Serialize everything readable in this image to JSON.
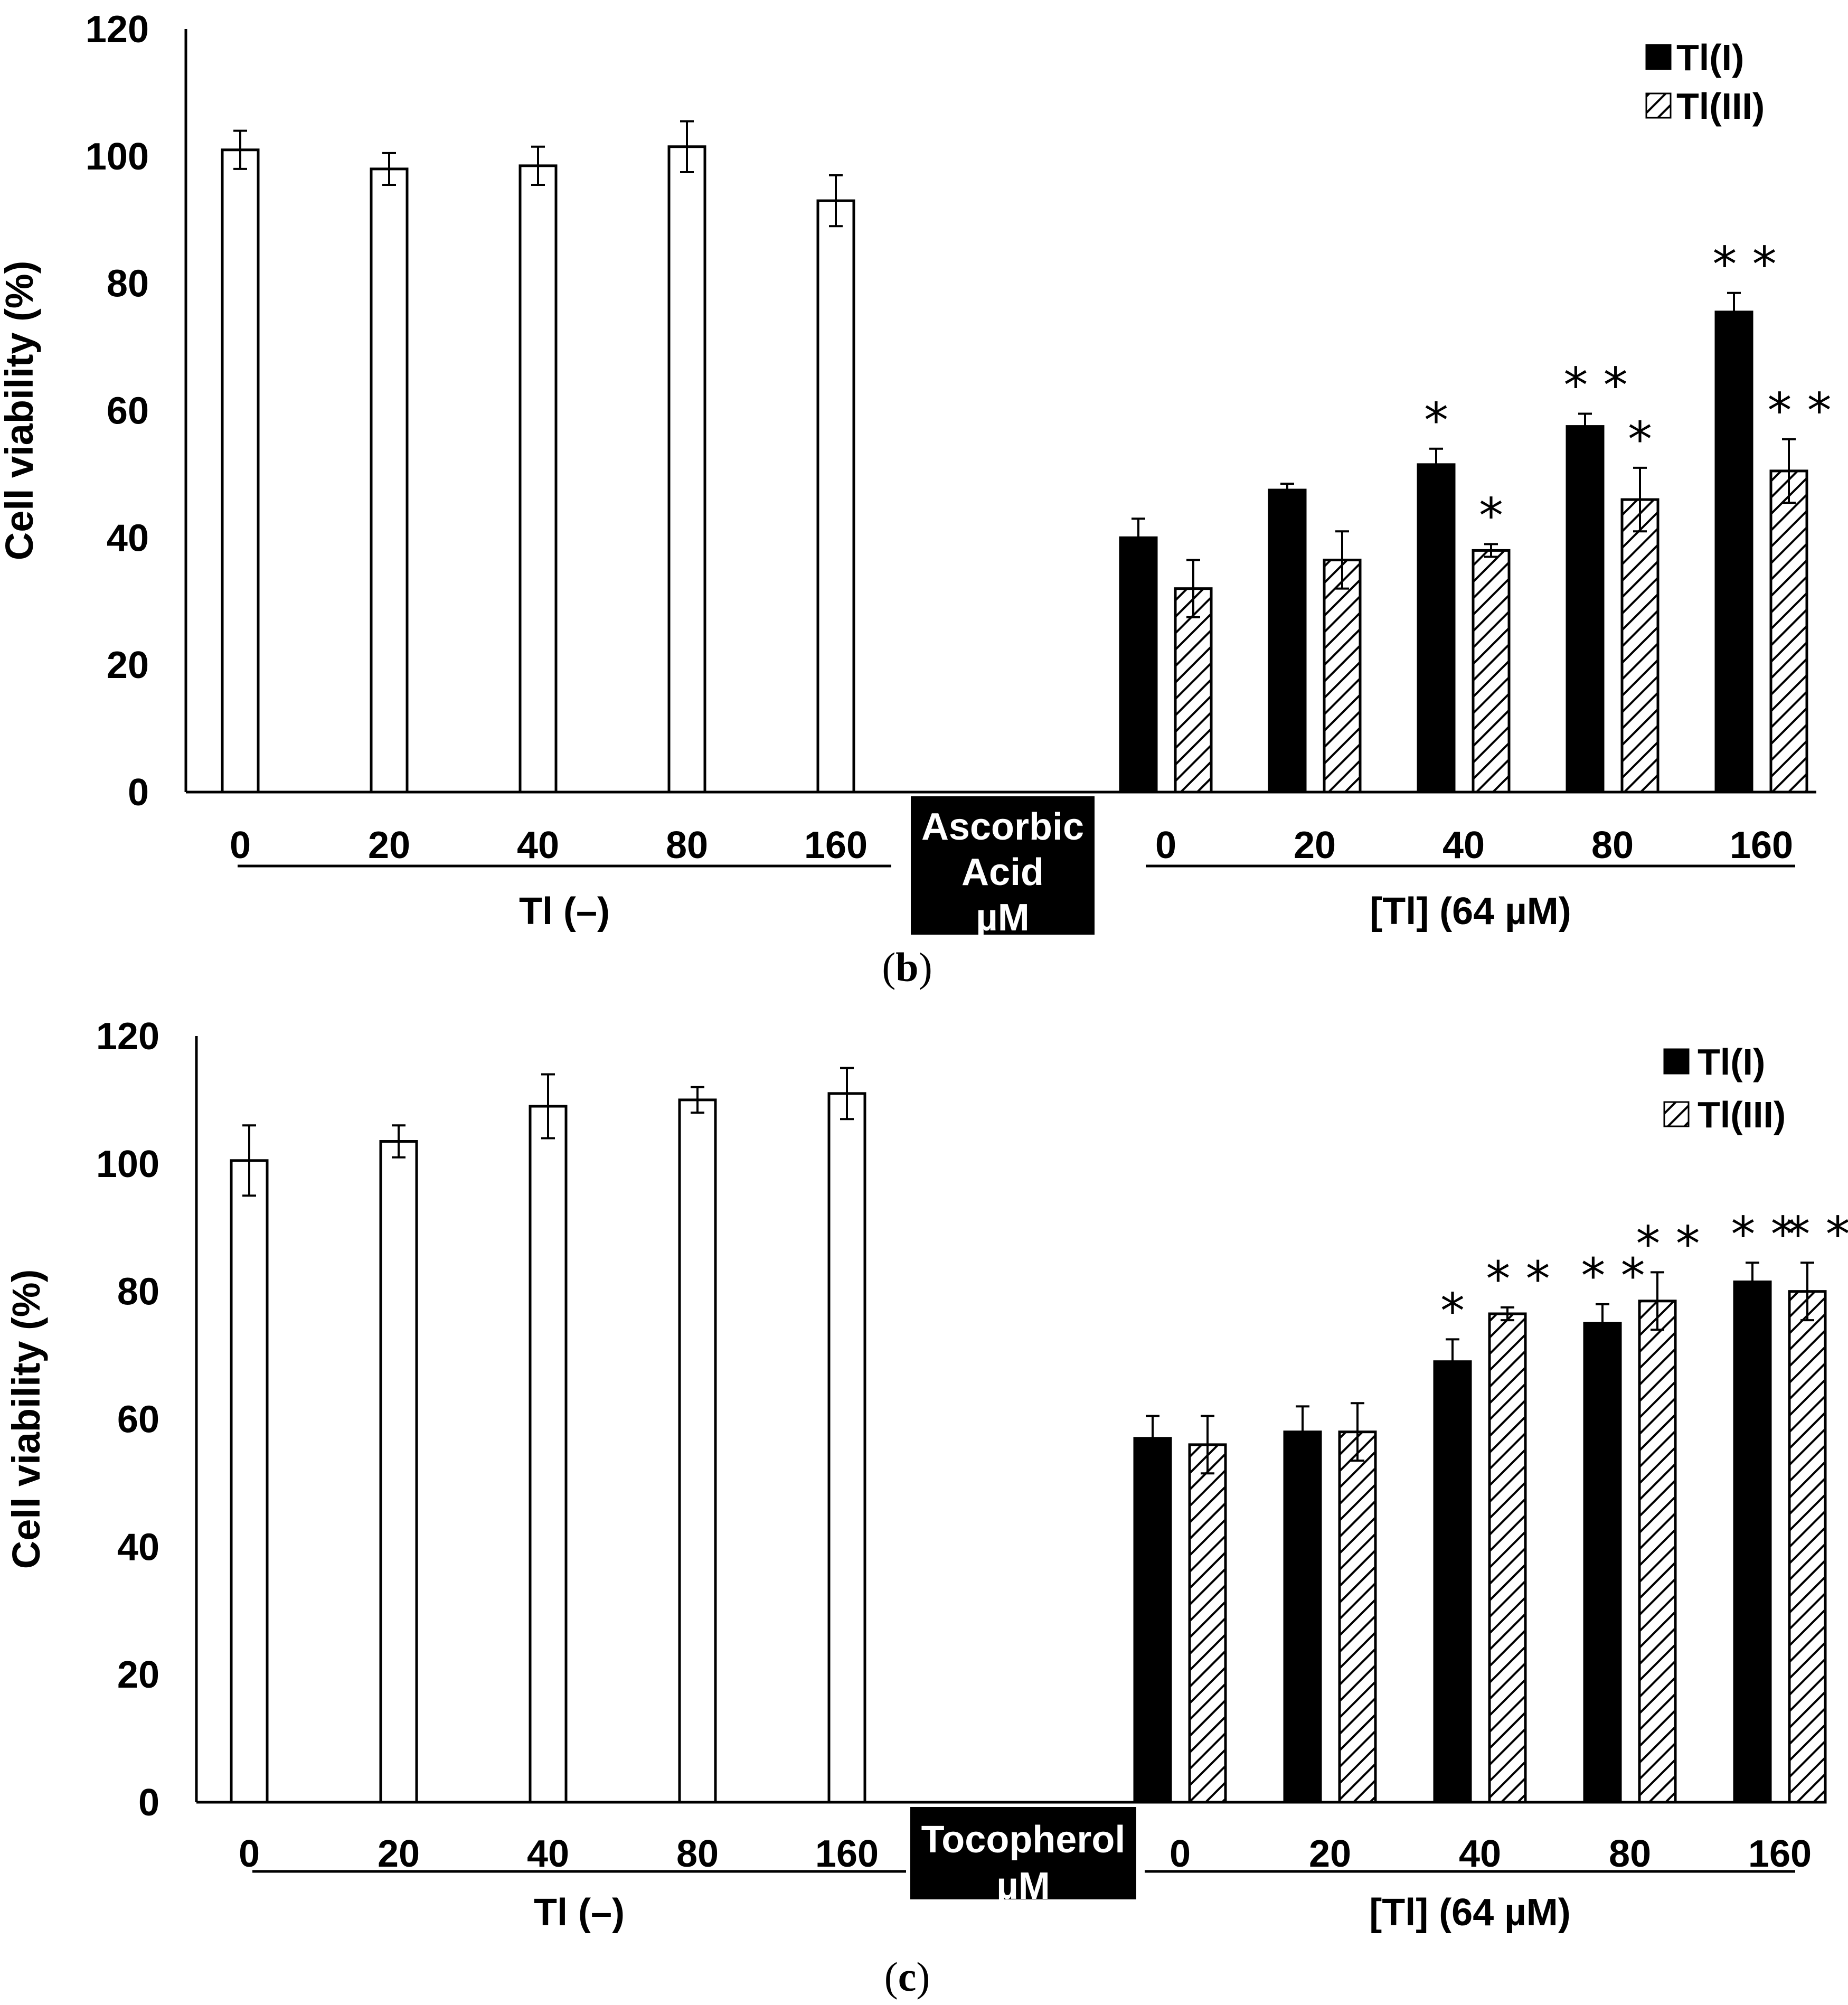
{
  "chart_data": [
    {
      "type": "bar",
      "panel": "b",
      "ylabel": "Cell viability (%)",
      "ylim": [
        0,
        120
      ],
      "yticks": [
        0,
        20,
        40,
        60,
        80,
        100,
        120
      ],
      "categories": [
        "0",
        "20",
        "40",
        "80",
        "160"
      ],
      "additive_label": [
        "Ascorbic",
        "Acid",
        "µM"
      ],
      "group_control_label": "Tl (–)",
      "group_treated_label": "[Tl] (64 µM)",
      "legend": [
        "Tl(I)",
        "Tl(III)"
      ],
      "series": [
        {
          "name": "Tl (–)",
          "group": "control",
          "values": [
            101,
            98,
            98.5,
            101.5,
            93
          ],
          "errors": [
            3,
            2.5,
            3,
            4,
            4
          ]
        },
        {
          "name": "Tl(I)",
          "group": "treated",
          "values": [
            40,
            47.5,
            51.5,
            57.5,
            75.5
          ],
          "errors": [
            3,
            1,
            2.5,
            2,
            3
          ]
        },
        {
          "name": "Tl(III)",
          "group": "treated",
          "values": [
            32,
            36.5,
            38,
            46,
            50.5
          ],
          "errors": [
            4.5,
            4.5,
            1,
            5,
            5
          ]
        }
      ],
      "annotations": [
        {
          "series": "Tl(I)",
          "category": "40",
          "text": "*"
        },
        {
          "series": "Tl(III)",
          "category": "40",
          "text": "*"
        },
        {
          "series": "Tl(I)",
          "category": "80",
          "text": "* *"
        },
        {
          "series": "Tl(III)",
          "category": "80",
          "text": "*"
        },
        {
          "series": "Tl(I)",
          "category": "160",
          "text": "* *"
        },
        {
          "series": "Tl(III)",
          "category": "160",
          "text": "* *"
        }
      ]
    },
    {
      "type": "bar",
      "panel": "c",
      "ylabel": "Cell viability (%)",
      "ylim": [
        0,
        120
      ],
      "yticks": [
        0,
        20,
        40,
        60,
        80,
        100,
        120
      ],
      "categories": [
        "0",
        "20",
        "40",
        "80",
        "160"
      ],
      "additive_label": [
        "Tocopherol",
        "µM"
      ],
      "group_control_label": "Tl (–)",
      "group_treated_label": "[Tl] (64 µM)",
      "legend": [
        "Tl(I)",
        "Tl(III)"
      ],
      "series": [
        {
          "name": "Tl (–)",
          "group": "control",
          "values": [
            100.5,
            103.5,
            109,
            110,
            111
          ],
          "errors": [
            5.5,
            2.5,
            5,
            2,
            4
          ]
        },
        {
          "name": "Tl(I)",
          "group": "treated",
          "values": [
            57,
            58,
            69,
            75,
            81.5
          ],
          "errors": [
            3.5,
            4,
            3.5,
            3,
            3
          ]
        },
        {
          "name": "Tl(III)",
          "group": "treated",
          "values": [
            56,
            58,
            76.5,
            78.5,
            80
          ],
          "errors": [
            4.5,
            4.5,
            1,
            4.5,
            4.5
          ]
        }
      ],
      "annotations": [
        {
          "series": "Tl(I)",
          "category": "40",
          "text": "*"
        },
        {
          "series": "Tl(III)",
          "category": "40",
          "text": "* *"
        },
        {
          "series": "Tl(I)",
          "category": "80",
          "text": "* *"
        },
        {
          "series": "Tl(III)",
          "category": "80",
          "text": "* *"
        },
        {
          "series": "Tl(I)",
          "category": "160",
          "text": "* *"
        },
        {
          "series": "Tl(III)",
          "category": "160",
          "text": "* *"
        }
      ]
    }
  ],
  "captions": {
    "panel_b": {
      "open": "(",
      "letter": "b",
      "close": ")"
    },
    "panel_c": {
      "open": "(",
      "letter": "c",
      "close": ")"
    }
  }
}
